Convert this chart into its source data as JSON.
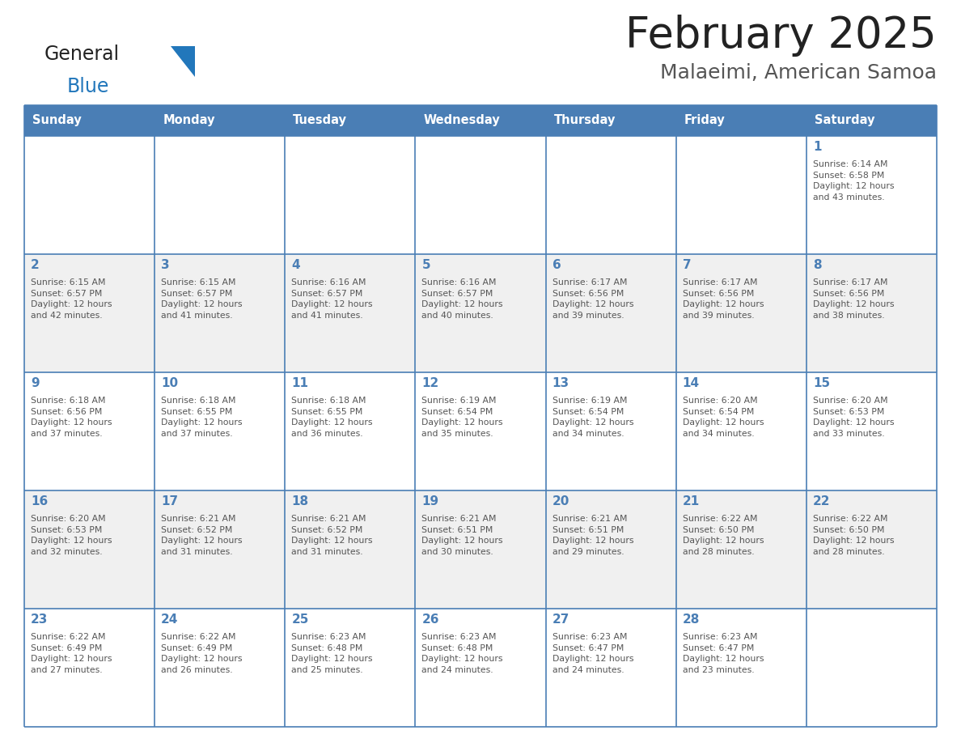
{
  "title": "February 2025",
  "subtitle": "Malaeimi, American Samoa",
  "days_of_week": [
    "Sunday",
    "Monday",
    "Tuesday",
    "Wednesday",
    "Thursday",
    "Friday",
    "Saturday"
  ],
  "header_bg": "#4a7eb5",
  "header_text": "#ffffff",
  "cell_bg_white": "#ffffff",
  "cell_bg_gray": "#f0f0f0",
  "border_color": "#4a7eb5",
  "row_line_color": "#4a7eb5",
  "day_number_color": "#4a7eb5",
  "info_text_color": "#555555",
  "title_color": "#222222",
  "subtitle_color": "#555555",
  "logo_general_color": "#222222",
  "logo_blue_color": "#2277bb",
  "logo_triangle_color": "#2277bb",
  "calendar": [
    [
      {
        "day": null,
        "info": ""
      },
      {
        "day": null,
        "info": ""
      },
      {
        "day": null,
        "info": ""
      },
      {
        "day": null,
        "info": ""
      },
      {
        "day": null,
        "info": ""
      },
      {
        "day": null,
        "info": ""
      },
      {
        "day": 1,
        "info": "Sunrise: 6:14 AM\nSunset: 6:58 PM\nDaylight: 12 hours\nand 43 minutes."
      }
    ],
    [
      {
        "day": 2,
        "info": "Sunrise: 6:15 AM\nSunset: 6:57 PM\nDaylight: 12 hours\nand 42 minutes."
      },
      {
        "day": 3,
        "info": "Sunrise: 6:15 AM\nSunset: 6:57 PM\nDaylight: 12 hours\nand 41 minutes."
      },
      {
        "day": 4,
        "info": "Sunrise: 6:16 AM\nSunset: 6:57 PM\nDaylight: 12 hours\nand 41 minutes."
      },
      {
        "day": 5,
        "info": "Sunrise: 6:16 AM\nSunset: 6:57 PM\nDaylight: 12 hours\nand 40 minutes."
      },
      {
        "day": 6,
        "info": "Sunrise: 6:17 AM\nSunset: 6:56 PM\nDaylight: 12 hours\nand 39 minutes."
      },
      {
        "day": 7,
        "info": "Sunrise: 6:17 AM\nSunset: 6:56 PM\nDaylight: 12 hours\nand 39 minutes."
      },
      {
        "day": 8,
        "info": "Sunrise: 6:17 AM\nSunset: 6:56 PM\nDaylight: 12 hours\nand 38 minutes."
      }
    ],
    [
      {
        "day": 9,
        "info": "Sunrise: 6:18 AM\nSunset: 6:56 PM\nDaylight: 12 hours\nand 37 minutes."
      },
      {
        "day": 10,
        "info": "Sunrise: 6:18 AM\nSunset: 6:55 PM\nDaylight: 12 hours\nand 37 minutes."
      },
      {
        "day": 11,
        "info": "Sunrise: 6:18 AM\nSunset: 6:55 PM\nDaylight: 12 hours\nand 36 minutes."
      },
      {
        "day": 12,
        "info": "Sunrise: 6:19 AM\nSunset: 6:54 PM\nDaylight: 12 hours\nand 35 minutes."
      },
      {
        "day": 13,
        "info": "Sunrise: 6:19 AM\nSunset: 6:54 PM\nDaylight: 12 hours\nand 34 minutes."
      },
      {
        "day": 14,
        "info": "Sunrise: 6:20 AM\nSunset: 6:54 PM\nDaylight: 12 hours\nand 34 minutes."
      },
      {
        "day": 15,
        "info": "Sunrise: 6:20 AM\nSunset: 6:53 PM\nDaylight: 12 hours\nand 33 minutes."
      }
    ],
    [
      {
        "day": 16,
        "info": "Sunrise: 6:20 AM\nSunset: 6:53 PM\nDaylight: 12 hours\nand 32 minutes."
      },
      {
        "day": 17,
        "info": "Sunrise: 6:21 AM\nSunset: 6:52 PM\nDaylight: 12 hours\nand 31 minutes."
      },
      {
        "day": 18,
        "info": "Sunrise: 6:21 AM\nSunset: 6:52 PM\nDaylight: 12 hours\nand 31 minutes."
      },
      {
        "day": 19,
        "info": "Sunrise: 6:21 AM\nSunset: 6:51 PM\nDaylight: 12 hours\nand 30 minutes."
      },
      {
        "day": 20,
        "info": "Sunrise: 6:21 AM\nSunset: 6:51 PM\nDaylight: 12 hours\nand 29 minutes."
      },
      {
        "day": 21,
        "info": "Sunrise: 6:22 AM\nSunset: 6:50 PM\nDaylight: 12 hours\nand 28 minutes."
      },
      {
        "day": 22,
        "info": "Sunrise: 6:22 AM\nSunset: 6:50 PM\nDaylight: 12 hours\nand 28 minutes."
      }
    ],
    [
      {
        "day": 23,
        "info": "Sunrise: 6:22 AM\nSunset: 6:49 PM\nDaylight: 12 hours\nand 27 minutes."
      },
      {
        "day": 24,
        "info": "Sunrise: 6:22 AM\nSunset: 6:49 PM\nDaylight: 12 hours\nand 26 minutes."
      },
      {
        "day": 25,
        "info": "Sunrise: 6:23 AM\nSunset: 6:48 PM\nDaylight: 12 hours\nand 25 minutes."
      },
      {
        "day": 26,
        "info": "Sunrise: 6:23 AM\nSunset: 6:48 PM\nDaylight: 12 hours\nand 24 minutes."
      },
      {
        "day": 27,
        "info": "Sunrise: 6:23 AM\nSunset: 6:47 PM\nDaylight: 12 hours\nand 24 minutes."
      },
      {
        "day": 28,
        "info": "Sunrise: 6:23 AM\nSunset: 6:47 PM\nDaylight: 12 hours\nand 23 minutes."
      },
      {
        "day": null,
        "info": ""
      }
    ]
  ],
  "fig_width": 11.88,
  "fig_height": 9.18,
  "dpi": 100
}
